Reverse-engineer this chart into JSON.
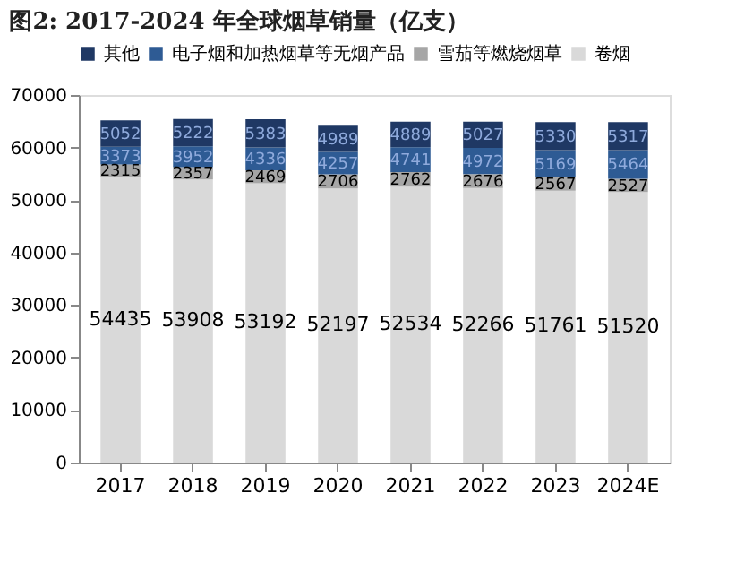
{
  "chart_data": {
    "type": "bar",
    "title": "图2: 2017-2024 年全球烟草销量（亿支）",
    "categories": [
      "2017",
      "2018",
      "2019",
      "2020",
      "2021",
      "2022",
      "2023",
      "2024E"
    ],
    "stacked": true,
    "data_labels": true,
    "legend": "top",
    "grid": false,
    "ylim": [
      0,
      70000
    ],
    "yticks": [
      0,
      10000,
      20000,
      30000,
      40000,
      50000,
      60000,
      70000
    ],
    "series": [
      {
        "name": "卷烟",
        "color": "#d9d9d9",
        "values": [
          54435,
          53908,
          53192,
          52197,
          52534,
          52266,
          51761,
          51520
        ]
      },
      {
        "name": "雪茄等燃烧烟草",
        "color": "#a6a6a6",
        "values": [
          2315,
          2357,
          2469,
          2706,
          2762,
          2676,
          2567,
          2527
        ]
      },
      {
        "name": "电子烟和加热烟草等无烟产品",
        "color": "#2e5b94",
        "values": [
          3373,
          3952,
          4336,
          4257,
          4741,
          4972,
          5169,
          5464
        ]
      },
      {
        "name": "其他",
        "color": "#1f3864",
        "values": [
          5052,
          5222,
          5383,
          4989,
          4889,
          5027,
          5330,
          5317
        ]
      }
    ]
  }
}
